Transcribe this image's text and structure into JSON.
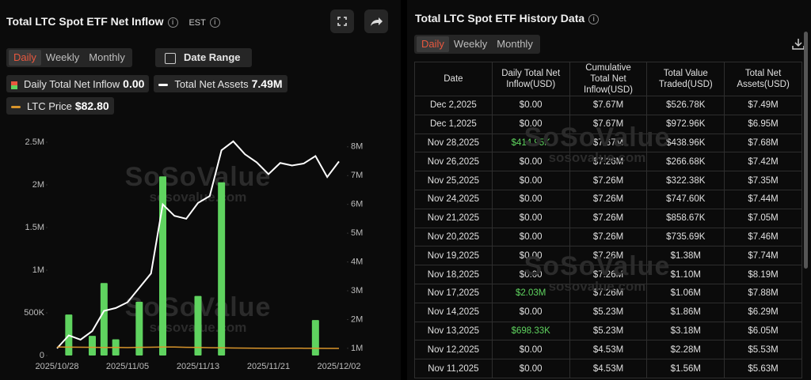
{
  "left_panel": {
    "title": "Total LTC Spot ETF Net Inflow",
    "timezone": "EST",
    "tabs": [
      "Daily",
      "Weekly",
      "Monthly"
    ],
    "active_tab": 0,
    "date_range": "Date Range"
  },
  "chart_data": {
    "type": "bar",
    "categories": [
      "2025/10/28",
      null,
      null,
      null,
      null,
      null,
      "2025/11/05",
      null,
      null,
      null,
      null,
      null,
      "2025/11/13",
      null,
      null,
      null,
      null,
      null,
      "2025/11/21",
      null,
      null,
      null,
      null,
      null,
      "2025/12/02"
    ],
    "series": [
      {
        "name": "Daily Total Net Inflow",
        "color": "#5fd35f",
        "type": "bar",
        "values": [
          0,
          480000,
          0,
          230000,
          850000,
          190000,
          0,
          630000,
          0,
          2100000,
          0,
          0,
          698330,
          0,
          2030000,
          0,
          0,
          0,
          0,
          0,
          0,
          0,
          414950,
          0,
          0
        ]
      },
      {
        "name": "Total Net Assets",
        "color": "#ffffff",
        "type": "line",
        "axis": "y2",
        "values": [
          1000000,
          1450000,
          1300000,
          1600000,
          2300000,
          2400000,
          2600000,
          3100000,
          3600000,
          6000000,
          5600000,
          5500000,
          6050000,
          6290000,
          7880000,
          8190000,
          7740000,
          7460000,
          7050000,
          7440000,
          7350000,
          7420000,
          7680000,
          6950000,
          7490000
        ]
      },
      {
        "name": "LTC Price",
        "color": "#d9952b",
        "type": "line",
        "axis": "y3",
        "values": [
          99,
          98,
          97,
          96,
          94,
          95,
          93,
          96,
          97,
          100,
          99,
          96,
          95,
          92,
          90,
          88,
          87,
          86,
          85,
          84,
          86,
          85,
          84,
          83,
          82.8
        ]
      }
    ],
    "legend_values": [
      "0.00",
      "7.49M",
      "$82.80"
    ],
    "ylim": [
      0,
      2500000
    ],
    "yticks": [
      0,
      {
        "value": 500000,
        "label": "500K"
      },
      {
        "value": 1000000,
        "label": "1M"
      },
      {
        "value": 1500000,
        "label": "1.5M"
      },
      {
        "value": 2000000,
        "label": "2M"
      },
      {
        "value": 2500000,
        "label": "2.5M"
      }
    ],
    "y2lim": [
      750000,
      8160000
    ],
    "y2ticks": [
      {
        "value": 1000000,
        "label": "1M"
      },
      {
        "value": 2000000,
        "label": "2M"
      },
      {
        "value": 3000000,
        "label": "3M"
      },
      {
        "value": 4000000,
        "label": "4M"
      },
      {
        "value": 5000000,
        "label": "5M"
      },
      {
        "value": 6000000,
        "label": "6M"
      },
      {
        "value": 7000000,
        "label": "7M"
      },
      {
        "value": 8000000,
        "label": "8M"
      }
    ],
    "y3lim": [
      0,
      2500
    ]
  },
  "watermark": {
    "brand": "SoSoValue",
    "url": "sosovalue.com"
  },
  "right_panel": {
    "title": "Total LTC Spot ETF History Data",
    "tabs": [
      "Daily",
      "Weekly",
      "Monthly"
    ],
    "active_tab": 0
  },
  "table": {
    "columns": [
      "Date",
      "Daily Total Net Inflow(USD)",
      "Cumulative Total Net Inflow(USD)",
      "Total Value Traded(USD)",
      "Total Net Assets(USD)"
    ],
    "rows": [
      [
        "Dec 2,2025",
        "$0.00",
        "$7.67M",
        "$526.78K",
        "$7.49M"
      ],
      [
        "Dec 1,2025",
        "$0.00",
        "$7.67M",
        "$972.96K",
        "$6.95M"
      ],
      [
        "Nov 28,2025",
        "$414.95K",
        "$7.67M",
        "$438.96K",
        "$7.68M"
      ],
      [
        "Nov 26,2025",
        "$0.00",
        "$7.26M",
        "$266.68K",
        "$7.42M"
      ],
      [
        "Nov 25,2025",
        "$0.00",
        "$7.26M",
        "$322.38K",
        "$7.35M"
      ],
      [
        "Nov 24,2025",
        "$0.00",
        "$7.26M",
        "$747.60K",
        "$7.44M"
      ],
      [
        "Nov 21,2025",
        "$0.00",
        "$7.26M",
        "$858.67K",
        "$7.05M"
      ],
      [
        "Nov 20,2025",
        "$0.00",
        "$7.26M",
        "$735.69K",
        "$7.46M"
      ],
      [
        "Nov 19,2025",
        "$0.00",
        "$7.26M",
        "$1.38M",
        "$7.74M"
      ],
      [
        "Nov 18,2025",
        "$0.00",
        "$7.26M",
        "$1.10M",
        "$8.19M"
      ],
      [
        "Nov 17,2025",
        "$2.03M",
        "$7.26M",
        "$1.06M",
        "$7.88M"
      ],
      [
        "Nov 14,2025",
        "$0.00",
        "$5.23M",
        "$1.86M",
        "$6.29M"
      ],
      [
        "Nov 13,2025",
        "$698.33K",
        "$5.23M",
        "$3.18M",
        "$6.05M"
      ],
      [
        "Nov 12,2025",
        "$0.00",
        "$4.53M",
        "$2.28M",
        "$5.53M"
      ],
      [
        "Nov 11,2025",
        "$0.00",
        "$4.53M",
        "$1.56M",
        "$5.63M"
      ]
    ],
    "inflow_colors": [
      "#e0e0e0",
      "#e0e0e0",
      "#5fd35f",
      "#e0e0e0",
      "#e0e0e0",
      "#e0e0e0",
      "#e0e0e0",
      "#e0e0e0",
      "#e0e0e0",
      "#e0e0e0",
      "#5fd35f",
      "#e0e0e0",
      "#5fd35f",
      "#e0e0e0",
      "#e0e0e0"
    ]
  }
}
